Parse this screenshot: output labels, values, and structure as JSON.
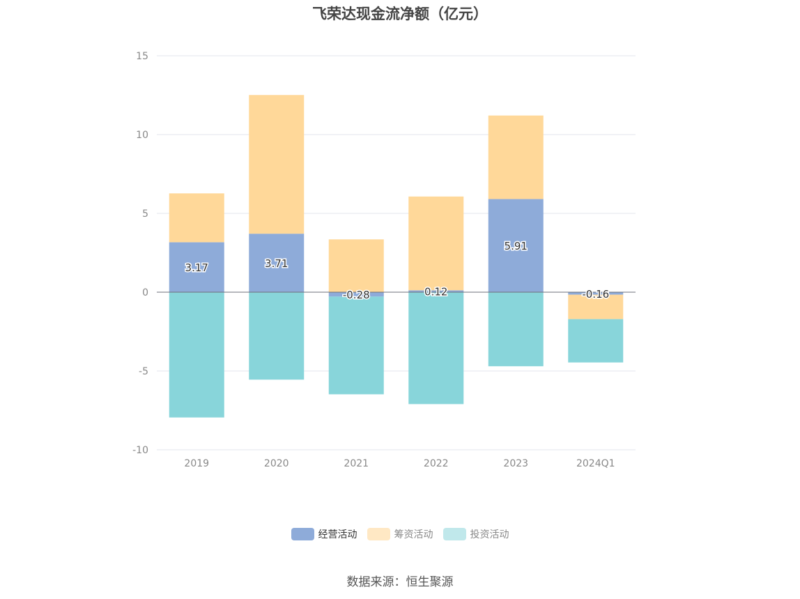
{
  "chart_data": {
    "type": "bar",
    "stacked": true,
    "title": "飞荣达现金流净额（亿元）",
    "categories": [
      "2019",
      "2020",
      "2021",
      "2022",
      "2023",
      "2024Q1"
    ],
    "series": [
      {
        "name": "经营活动",
        "color": "#8eabd9",
        "values": [
          3.17,
          3.71,
          -0.28,
          0.12,
          5.91,
          -0.16
        ],
        "labels": [
          "3.17",
          "3.71",
          "-0.28",
          "0.12",
          "5.91",
          "-0.16"
        ]
      },
      {
        "name": "筹资活动",
        "color": "#ffd899",
        "values": [
          3.1,
          8.8,
          3.35,
          5.95,
          5.3,
          -1.55
        ]
      },
      {
        "name": "投资活动",
        "color": "#88d5da",
        "values": [
          -7.95,
          -5.55,
          -6.2,
          -7.1,
          -4.7,
          -2.75
        ]
      }
    ],
    "ylim": [
      -10,
      15
    ],
    "yticks": [
      "-10",
      "-5",
      "0",
      "5",
      "10",
      "15"
    ],
    "grid": true,
    "legend_position": "bottom",
    "legend_swatch_colors": [
      "#8eabd9",
      "#ffe8c4",
      "#c0e8eb"
    ]
  },
  "source": "数据来源：恒生聚源"
}
